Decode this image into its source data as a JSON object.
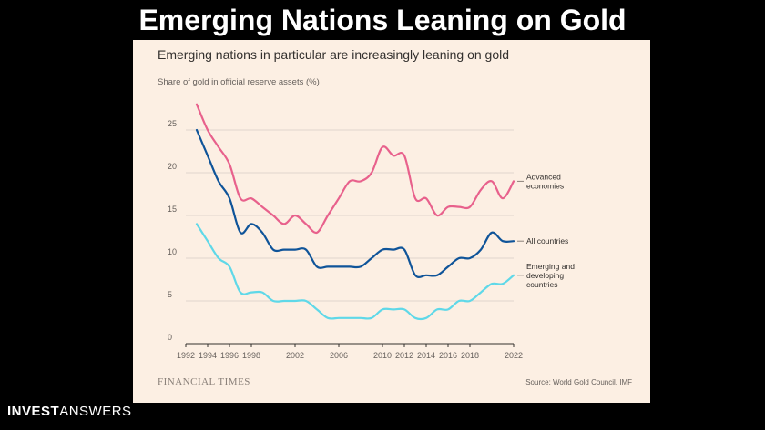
{
  "slide": {
    "title": "Emerging Nations Leaning on Gold",
    "brand_bold": "INVEST",
    "brand_light": "ANSWERS"
  },
  "chart_data": {
    "type": "line",
    "title": "Emerging nations in particular are increasingly leaning on gold",
    "subtitle": "Share of gold in official reserve assets (%)",
    "ylim": [
      0,
      30
    ],
    "yticks": [
      0,
      5,
      10,
      15,
      20,
      25
    ],
    "xlim": [
      1992,
      2022
    ],
    "xticks": [
      1992,
      1994,
      1996,
      1998,
      2002,
      2006,
      2010,
      2012,
      2014,
      2016,
      2018,
      2022
    ],
    "grid": "horizontal",
    "legend": "inline-right",
    "series": [
      {
        "name": "Advanced economies",
        "label_lines": [
          "Advanced",
          "economies"
        ],
        "color": "#e8618c",
        "points": [
          [
            1993,
            28
          ],
          [
            1994,
            25
          ],
          [
            1995,
            23
          ],
          [
            1996,
            21
          ],
          [
            1997,
            17
          ],
          [
            1998,
            17
          ],
          [
            1999,
            16
          ],
          [
            2000,
            15
          ],
          [
            2001,
            14
          ],
          [
            2002,
            15
          ],
          [
            2003,
            14
          ],
          [
            2004,
            13
          ],
          [
            2005,
            15
          ],
          [
            2006,
            17
          ],
          [
            2007,
            19
          ],
          [
            2008,
            19
          ],
          [
            2009,
            20
          ],
          [
            2010,
            23
          ],
          [
            2011,
            22
          ],
          [
            2012,
            22
          ],
          [
            2013,
            17
          ],
          [
            2014,
            17
          ],
          [
            2015,
            15
          ],
          [
            2016,
            16
          ],
          [
            2017,
            16
          ],
          [
            2018,
            16
          ],
          [
            2019,
            18
          ],
          [
            2020,
            19
          ],
          [
            2021,
            17
          ],
          [
            2022,
            19
          ]
        ]
      },
      {
        "name": "All countries",
        "label_lines": [
          "All countries"
        ],
        "color": "#0f5499",
        "points": [
          [
            1993,
            25
          ],
          [
            1994,
            22
          ],
          [
            1995,
            19
          ],
          [
            1996,
            17
          ],
          [
            1997,
            13
          ],
          [
            1998,
            14
          ],
          [
            1999,
            13
          ],
          [
            2000,
            11
          ],
          [
            2001,
            11
          ],
          [
            2002,
            11
          ],
          [
            2003,
            11
          ],
          [
            2004,
            9
          ],
          [
            2005,
            9
          ],
          [
            2006,
            9
          ],
          [
            2007,
            9
          ],
          [
            2008,
            9
          ],
          [
            2009,
            10
          ],
          [
            2010,
            11
          ],
          [
            2011,
            11
          ],
          [
            2012,
            11
          ],
          [
            2013,
            8
          ],
          [
            2014,
            8
          ],
          [
            2015,
            8
          ],
          [
            2016,
            9
          ],
          [
            2017,
            10
          ],
          [
            2018,
            10
          ],
          [
            2019,
            11
          ],
          [
            2020,
            13
          ],
          [
            2021,
            12
          ],
          [
            2022,
            12
          ]
        ]
      },
      {
        "name": "Emerging and developing countries",
        "label_lines": [
          "Emerging and",
          "developing",
          "countries"
        ],
        "color": "#5fd8e8",
        "points": [
          [
            1993,
            14
          ],
          [
            1994,
            12
          ],
          [
            1995,
            10
          ],
          [
            1996,
            9
          ],
          [
            1997,
            6
          ],
          [
            1998,
            6
          ],
          [
            1999,
            6
          ],
          [
            2000,
            5
          ],
          [
            2001,
            5
          ],
          [
            2002,
            5
          ],
          [
            2003,
            5
          ],
          [
            2004,
            4
          ],
          [
            2005,
            3
          ],
          [
            2006,
            3
          ],
          [
            2007,
            3
          ],
          [
            2008,
            3
          ],
          [
            2009,
            3
          ],
          [
            2010,
            4
          ],
          [
            2011,
            4
          ],
          [
            2012,
            4
          ],
          [
            2013,
            3
          ],
          [
            2014,
            3
          ],
          [
            2015,
            4
          ],
          [
            2016,
            4
          ],
          [
            2017,
            5
          ],
          [
            2018,
            5
          ],
          [
            2019,
            6
          ],
          [
            2020,
            7
          ],
          [
            2021,
            7
          ],
          [
            2022,
            8
          ]
        ]
      }
    ],
    "logo": "FINANCIAL TIMES",
    "source": "Source: World Gold Council, IMF"
  },
  "colors": {
    "background": "#000000",
    "card": "#fcefe3",
    "grid": "#e0d6cc",
    "axis": "#33302e"
  }
}
